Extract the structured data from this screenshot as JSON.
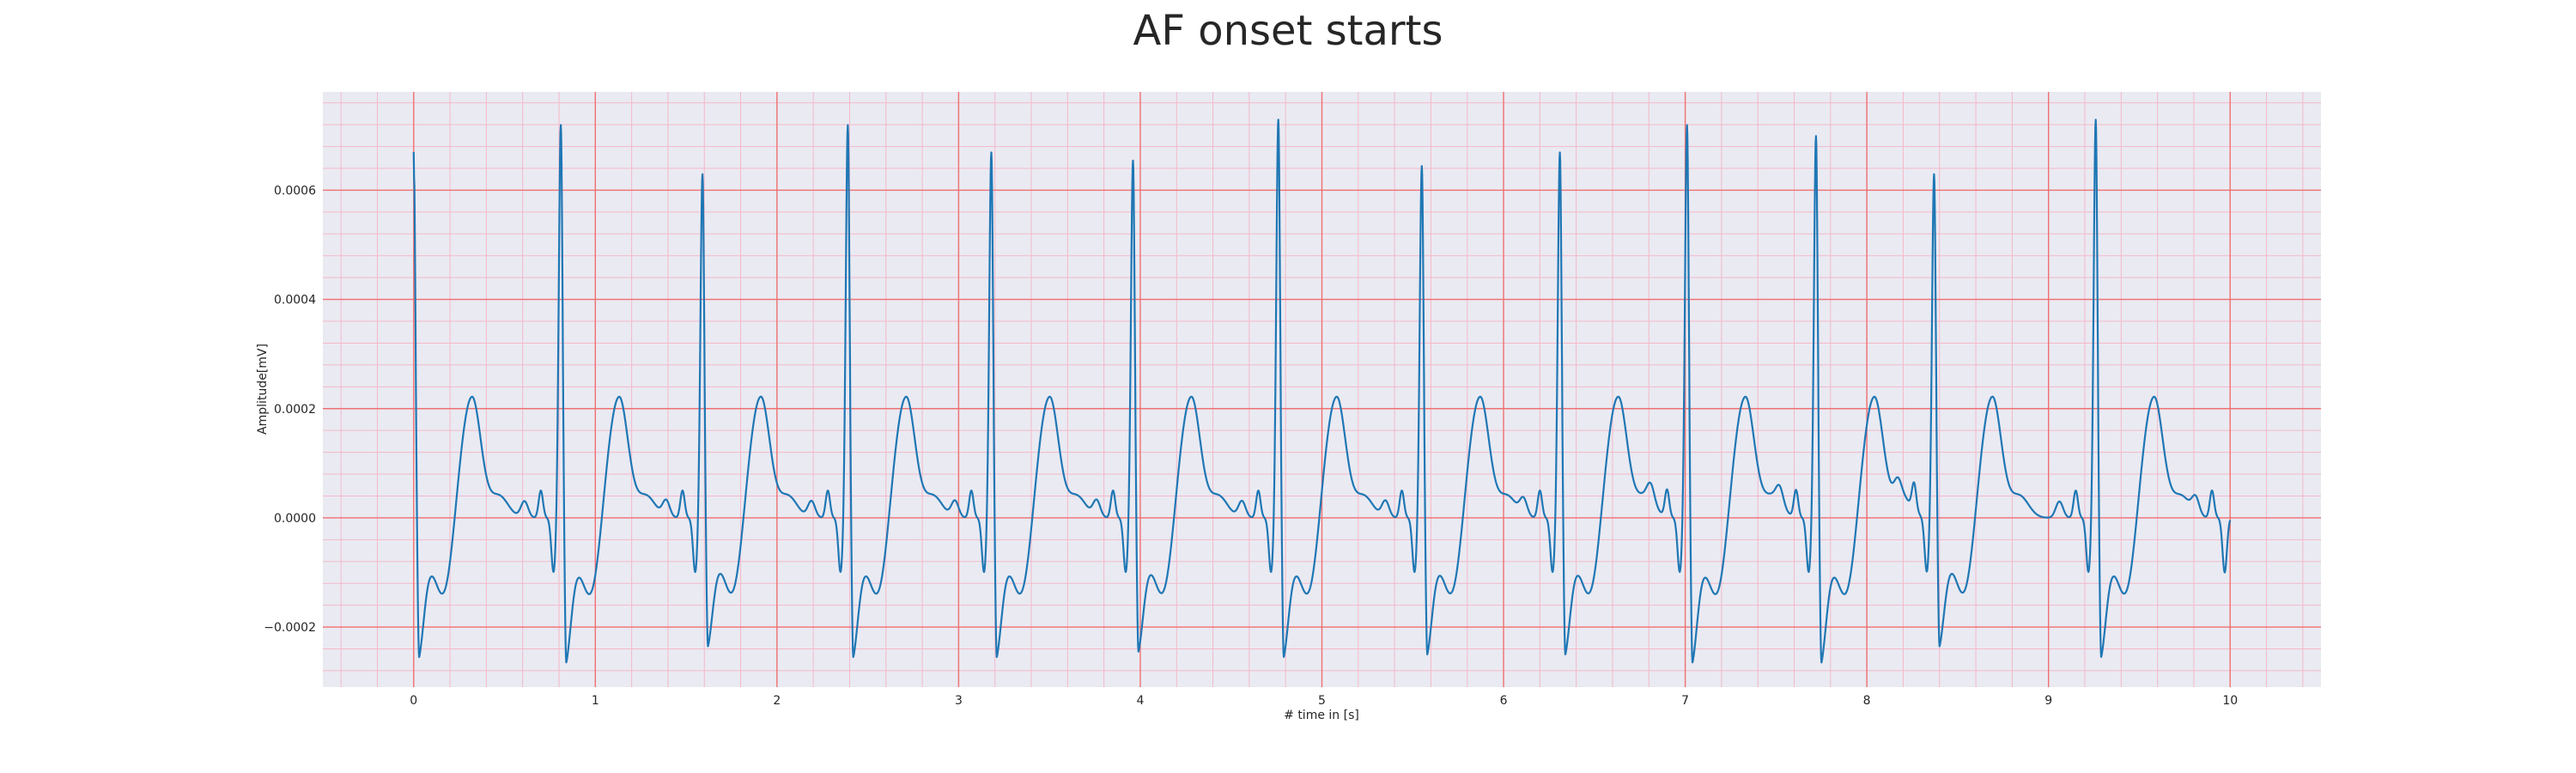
{
  "chart_data": {
    "type": "line",
    "title": "AF onset starts",
    "xlabel": "# time in [s]",
    "ylabel": "Amplitude[mV]",
    "xlim": [
      -0.5,
      10.5
    ],
    "ylim": [
      -0.00031,
      0.00078
    ],
    "x_ticks": [
      0,
      1,
      2,
      3,
      4,
      5,
      6,
      7,
      8,
      9,
      10
    ],
    "x_tick_labels": [
      "0",
      "1",
      "2",
      "3",
      "4",
      "5",
      "6",
      "7",
      "8",
      "9",
      "10"
    ],
    "y_ticks": [
      -0.0002,
      0.0,
      0.0002,
      0.0004,
      0.0006
    ],
    "y_tick_labels": [
      "−0.0002",
      "0.0000",
      "0.0002",
      "0.0004",
      "0.0006"
    ],
    "grid": true,
    "series": [
      {
        "color": "#1f77b4",
        "r_peaks": [
          {
            "t": 0.0,
            "peak": 0.00067,
            "trough": -0.000255
          },
          {
            "t": 0.81,
            "peak": 0.00072,
            "trough": -0.000265
          },
          {
            "t": 1.59,
            "peak": 0.00063,
            "trough": -0.000235
          },
          {
            "t": 2.39,
            "peak": 0.00072,
            "trough": -0.000255
          },
          {
            "t": 3.18,
            "peak": 0.00067,
            "trough": -0.000255
          },
          {
            "t": 3.96,
            "peak": 0.000655,
            "trough": -0.000245
          },
          {
            "t": 4.76,
            "peak": 0.00073,
            "trough": -0.000255
          },
          {
            "t": 5.55,
            "peak": 0.000645,
            "trough": -0.00025
          },
          {
            "t": 6.31,
            "peak": 0.00067,
            "trough": -0.00025
          },
          {
            "t": 7.01,
            "peak": 0.00072,
            "trough": -0.000265
          },
          {
            "t": 7.72,
            "peak": 0.0007,
            "trough": -0.000265
          },
          {
            "t": 8.37,
            "peak": 0.00063,
            "trough": -0.000235
          },
          {
            "t": 9.26,
            "peak": 0.00073,
            "trough": -0.000255
          }
        ],
        "x_end": 10.0
      }
    ]
  }
}
